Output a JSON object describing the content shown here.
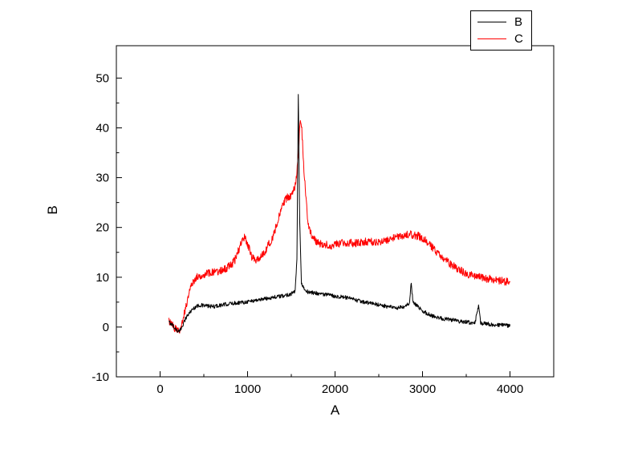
{
  "figure": {
    "background": "#ffffff"
  },
  "chart_data": {
    "type": "line",
    "title": "",
    "xlabel": "A",
    "ylabel": "B",
    "x_range": [
      -500,
      4500
    ],
    "y_range": [
      -10,
      56.5
    ],
    "x_ticks": [
      0,
      1000,
      2000,
      3000,
      4000
    ],
    "y_ticks": [
      -10,
      0,
      10,
      20,
      30,
      40,
      50
    ],
    "x_minor_step": 500,
    "y_minor_step": 5,
    "grid": false,
    "legend_position": "top-right",
    "series": [
      {
        "name": "B",
        "color": "#000000",
        "noise": 0.4,
        "anchors": [
          [
            100,
            1
          ],
          [
            140,
            0.5
          ],
          [
            180,
            -0.5
          ],
          [
            220,
            -1
          ],
          [
            260,
            0.5
          ],
          [
            300,
            2
          ],
          [
            350,
            3.2
          ],
          [
            400,
            4
          ],
          [
            450,
            4.4
          ],
          [
            500,
            4.3
          ],
          [
            600,
            4.1
          ],
          [
            700,
            4.4
          ],
          [
            800,
            4.7
          ],
          [
            900,
            4.9
          ],
          [
            1000,
            5.1
          ],
          [
            1100,
            5.4
          ],
          [
            1200,
            5.7
          ],
          [
            1300,
            6
          ],
          [
            1400,
            6.2
          ],
          [
            1500,
            6.7
          ],
          [
            1545,
            7.2
          ],
          [
            1565,
            14
          ],
          [
            1580,
            47
          ],
          [
            1595,
            22
          ],
          [
            1615,
            9
          ],
          [
            1650,
            7.4
          ],
          [
            1700,
            7
          ],
          [
            1800,
            6.8
          ],
          [
            1900,
            6.5
          ],
          [
            2000,
            6.2
          ],
          [
            2100,
            6
          ],
          [
            2200,
            5.6
          ],
          [
            2300,
            5.1
          ],
          [
            2400,
            4.8
          ],
          [
            2500,
            4.5
          ],
          [
            2600,
            4.1
          ],
          [
            2700,
            3.8
          ],
          [
            2800,
            4
          ],
          [
            2850,
            4.8
          ],
          [
            2870,
            8.8
          ],
          [
            2890,
            5.2
          ],
          [
            2950,
            4
          ],
          [
            3000,
            3.2
          ],
          [
            3100,
            2.3
          ],
          [
            3200,
            1.8
          ],
          [
            3300,
            1.5
          ],
          [
            3400,
            1.2
          ],
          [
            3500,
            1
          ],
          [
            3600,
            0.8
          ],
          [
            3640,
            4.2
          ],
          [
            3665,
            0.8
          ],
          [
            3700,
            0.7
          ],
          [
            3800,
            0.5
          ],
          [
            3900,
            0.4
          ],
          [
            4000,
            0.3
          ]
        ]
      },
      {
        "name": "C",
        "color": "#ff0000",
        "noise": 0.8,
        "anchors": [
          [
            100,
            1.2
          ],
          [
            140,
            0.3
          ],
          [
            180,
            -0.5
          ],
          [
            220,
            -0.8
          ],
          [
            260,
            1.5
          ],
          [
            300,
            4.5
          ],
          [
            340,
            7.5
          ],
          [
            380,
            9.2
          ],
          [
            420,
            10
          ],
          [
            470,
            10.4
          ],
          [
            520,
            10.8
          ],
          [
            600,
            10.9
          ],
          [
            700,
            11.3
          ],
          [
            800,
            12.3
          ],
          [
            850,
            13.2
          ],
          [
            900,
            15.5
          ],
          [
            950,
            18.3
          ],
          [
            1000,
            16.8
          ],
          [
            1050,
            14
          ],
          [
            1100,
            13.4
          ],
          [
            1150,
            14
          ],
          [
            1200,
            15.2
          ],
          [
            1300,
            18.5
          ],
          [
            1350,
            21.5
          ],
          [
            1400,
            24.5
          ],
          [
            1450,
            26
          ],
          [
            1500,
            26.3
          ],
          [
            1550,
            28.5
          ],
          [
            1580,
            34
          ],
          [
            1600,
            41
          ],
          [
            1620,
            39.5
          ],
          [
            1650,
            30
          ],
          [
            1690,
            21
          ],
          [
            1730,
            18.5
          ],
          [
            1780,
            17.2
          ],
          [
            1850,
            16.6
          ],
          [
            1950,
            16.4
          ],
          [
            2050,
            16.8
          ],
          [
            2150,
            16.9
          ],
          [
            2250,
            16.8
          ],
          [
            2350,
            17.2
          ],
          [
            2450,
            17
          ],
          [
            2550,
            17.3
          ],
          [
            2650,
            17.8
          ],
          [
            2750,
            18.3
          ],
          [
            2850,
            18.6
          ],
          [
            2950,
            18.3
          ],
          [
            3050,
            17.2
          ],
          [
            3150,
            15.3
          ],
          [
            3250,
            13.6
          ],
          [
            3350,
            12.3
          ],
          [
            3450,
            11.2
          ],
          [
            3550,
            10.4
          ],
          [
            3650,
            10
          ],
          [
            3750,
            9.7
          ],
          [
            3850,
            9.4
          ],
          [
            4000,
            9
          ]
        ]
      }
    ]
  }
}
